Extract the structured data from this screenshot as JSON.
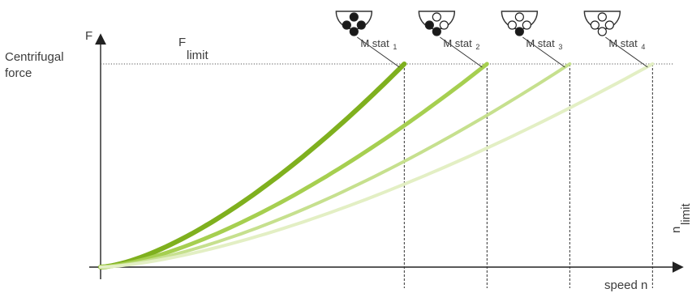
{
  "chart_data": {
    "type": "line",
    "ylabel_symbol": "F",
    "ylabel": "Centrifugal force",
    "ylabel_lines": [
      "Centrifugal",
      "force"
    ],
    "xlabel": "speed n",
    "limit_line_label": {
      "main": "F",
      "sub": "limit"
    },
    "vertical_limit_label": {
      "main": "n",
      "sub": "limit"
    },
    "series": [
      {
        "name": "M stat",
        "index": "1",
        "n_end": 0.367,
        "color": "#7fb01e",
        "hole_pattern": [
          1,
          1,
          1,
          1
        ]
      },
      {
        "name": "M stat",
        "index": "2",
        "n_end": 0.467,
        "color": "#a6cf50",
        "hole_pattern": [
          0,
          1,
          0,
          1
        ]
      },
      {
        "name": "M stat",
        "index": "3",
        "n_end": 0.567,
        "color": "#c6e08e",
        "hole_pattern": [
          0,
          0,
          0,
          1
        ]
      },
      {
        "name": "M stat",
        "index": "4",
        "n_end": 0.667,
        "color": "#e3efc4",
        "hole_pattern": [
          0,
          0,
          0,
          0
        ]
      }
    ],
    "curve_shape": "F proportional to n^1.5 up to F_limit",
    "xlim": [
      0,
      0.667
    ],
    "ylim": [
      0,
      1
    ],
    "grid": false,
    "legend": "icons above each curve end"
  }
}
